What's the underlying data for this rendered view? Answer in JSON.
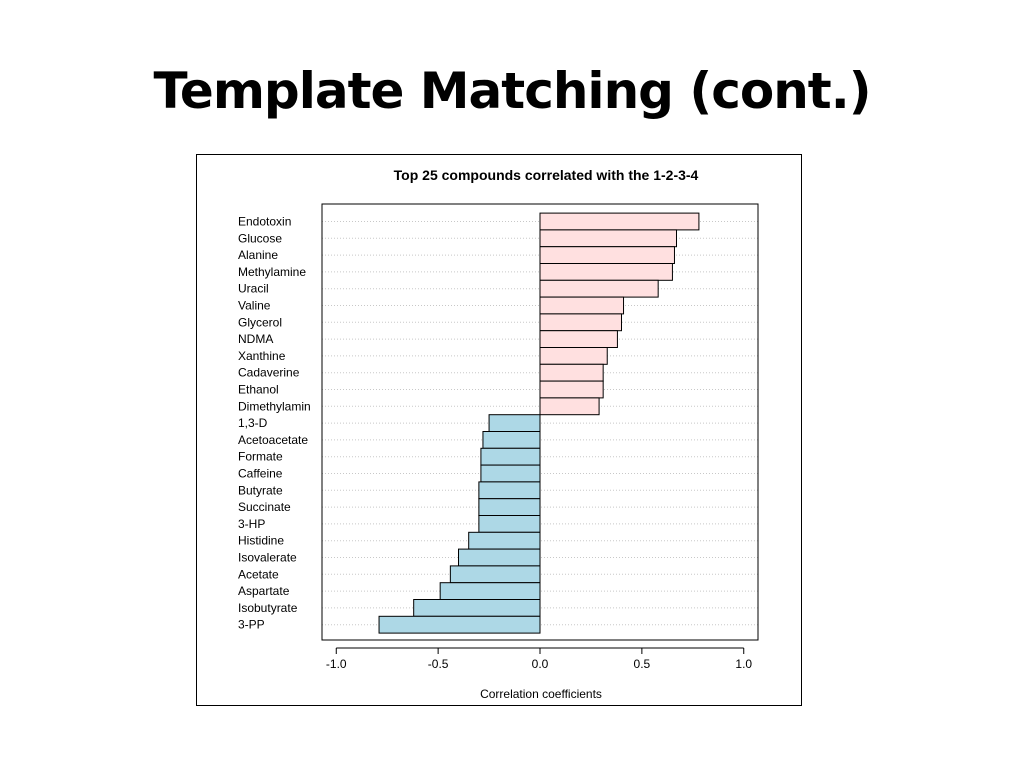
{
  "slide": {
    "title": "Template Matching (cont.)"
  },
  "chart_data": {
    "type": "bar",
    "orientation": "horizontal",
    "title": "Top 25 compounds correlated with the 1-2-3-4",
    "xlabel": "Correlation coefficients",
    "ylabel": "",
    "xlim": [
      -1.07,
      1.07
    ],
    "xticks": [
      -1.0,
      -0.5,
      0.0,
      0.5,
      1.0
    ],
    "xtick_labels": [
      "-1.0",
      "-0.5",
      "0.0",
      "0.5",
      "1.0"
    ],
    "grid": true,
    "categories": [
      "Endotoxin",
      "Glucose",
      "Alanine",
      "Methylamine",
      "Uracil",
      "Valine",
      "Glycerol",
      "NDMA",
      "Xanthine",
      "Cadaverine",
      "Ethanol",
      "Dimethylamin",
      "1,3-D",
      "Acetoacetate",
      "Formate",
      "Caffeine",
      "Butyrate",
      "Succinate",
      "3-HP",
      "Histidine",
      "Isovalerate",
      "Acetate",
      "Aspartate",
      "Isobutyrate",
      "3-PP"
    ],
    "values": [
      0.78,
      0.67,
      0.66,
      0.65,
      0.58,
      0.41,
      0.4,
      0.38,
      0.33,
      0.31,
      0.31,
      0.29,
      -0.25,
      -0.28,
      -0.29,
      -0.29,
      -0.3,
      -0.3,
      -0.3,
      -0.35,
      -0.4,
      -0.44,
      -0.49,
      -0.62,
      -0.79
    ],
    "colors": {
      "positive": "#ffe0e0",
      "negative": "#add8e6",
      "bar_stroke": "#000000",
      "grid": "#c8c8c8"
    }
  }
}
